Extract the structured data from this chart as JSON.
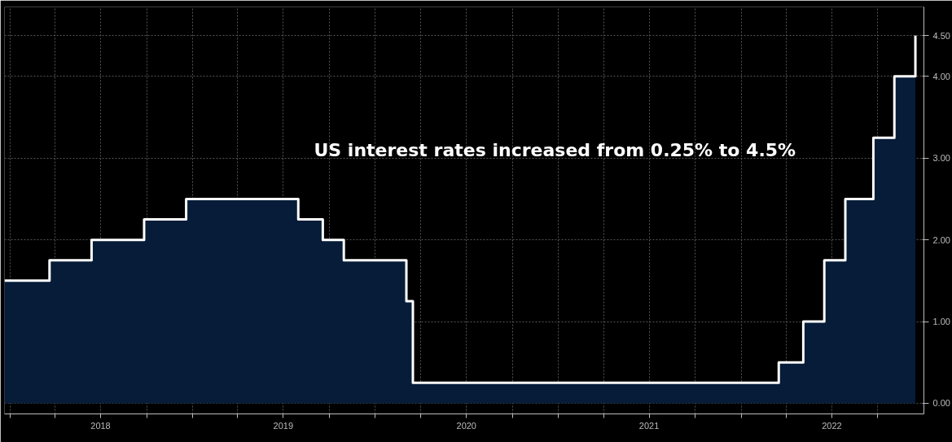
{
  "chart_data": {
    "type": "area",
    "x": [
      "2017-12-21",
      "2018-03-21",
      "2018-06-13",
      "2018-09-26",
      "2018-12-19",
      "2019-07-31",
      "2019-09-18",
      "2019-10-30",
      "2020-03-03",
      "2020-03-16",
      "2022-03-17",
      "2022-05-05",
      "2022-06-16",
      "2022-07-28",
      "2022-09-22",
      "2022-11-03",
      "2022-12-15"
    ],
    "series": [
      {
        "color": "#061c38",
        "values": [
          1.5,
          1.75,
          2.0,
          2.25,
          2.5,
          2.25,
          2.0,
          1.75,
          1.25,
          0.25,
          0.5,
          1.0,
          1.75,
          2.5,
          3.25,
          4.0,
          4.5
        ]
      },
      {
        "type": "step",
        "color": "#ffffff",
        "values": [
          1.5,
          1.75,
          2.0,
          2.25,
          2.5,
          2.25,
          2.0,
          1.75,
          1.25,
          0.25,
          0.5,
          1.0,
          1.75,
          2.5,
          3.25,
          4.0,
          4.5
        ]
      }
    ],
    "xlim": [
      "2017-12-21",
      "2023-01-01"
    ],
    "xticks": [
      {
        "value": "2018-01-01",
        "label": null
      },
      {
        "value": "2018-04-01",
        "label": null
      },
      {
        "value": "2018-07-01",
        "label": "2018"
      },
      {
        "value": "2018-10-01",
        "label": null
      },
      {
        "value": "2019-01-01",
        "label": null
      },
      {
        "value": "2019-04-01",
        "label": null
      },
      {
        "value": "2019-07-01",
        "label": "2019"
      },
      {
        "value": "2019-10-01",
        "label": null
      },
      {
        "value": "2020-01-01",
        "label": null
      },
      {
        "value": "2020-04-01",
        "label": null
      },
      {
        "value": "2020-07-01",
        "label": "2020"
      },
      {
        "value": "2020-10-01",
        "label": null
      },
      {
        "value": "2021-01-01",
        "label": null
      },
      {
        "value": "2021-04-01",
        "label": null
      },
      {
        "value": "2021-07-01",
        "label": "2021"
      },
      {
        "value": "2021-10-01",
        "label": null
      },
      {
        "value": "2022-01-01",
        "label": null
      },
      {
        "value": "2022-04-01",
        "label": null
      },
      {
        "value": "2022-07-01",
        "label": "2022"
      },
      {
        "value": "2022-10-01",
        "label": null
      }
    ],
    "ylim": [
      -0.13,
      4.85
    ],
    "yticks": [
      {
        "value": 0,
        "label": "0.00"
      },
      {
        "value": 1,
        "label": "1.00"
      },
      {
        "value": 2,
        "label": "2.00"
      },
      {
        "value": 3,
        "label": "3.00"
      },
      {
        "value": 4,
        "label": "4.00"
      },
      {
        "value": 4.5,
        "label": "4.50"
      }
    ],
    "grid": true,
    "annotations": [
      "US interest rates increased from 0.25% to 4.5%"
    ]
  }
}
